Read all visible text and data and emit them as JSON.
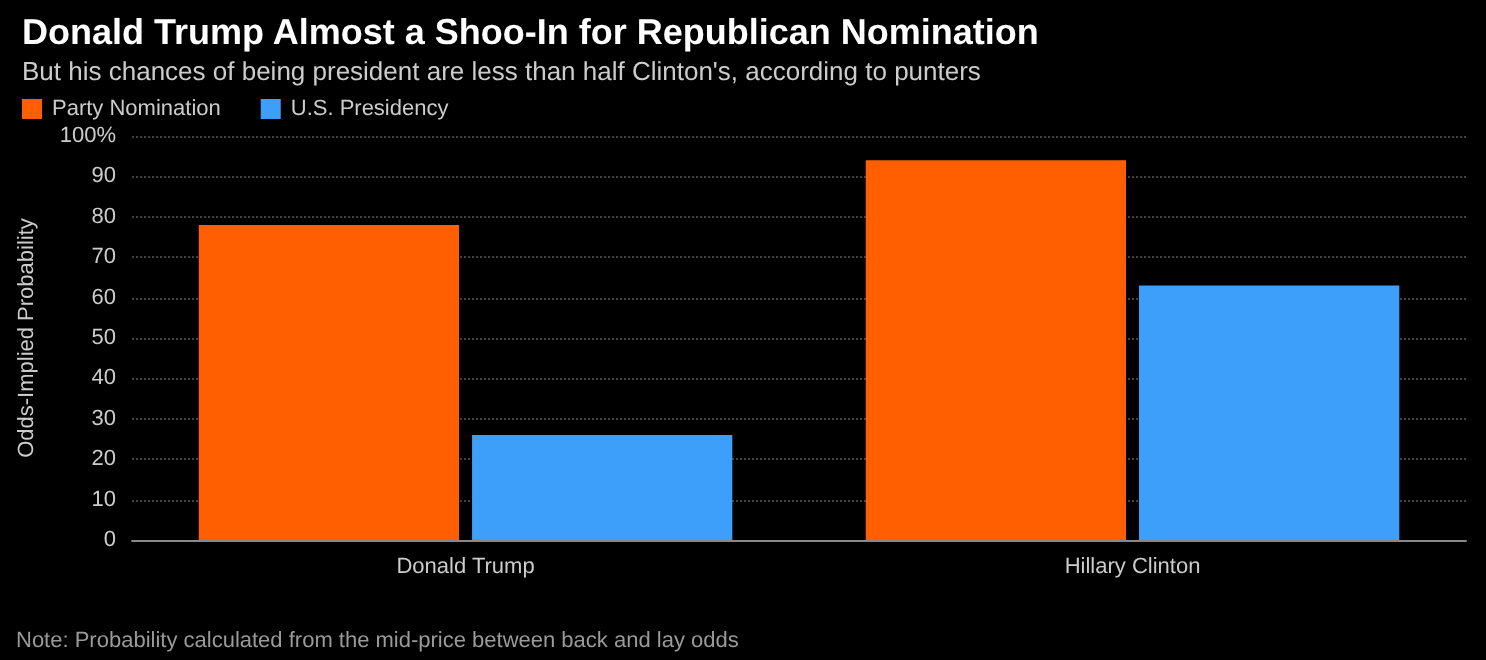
{
  "chart_data": {
    "type": "bar",
    "title": "Donald Trump Almost a Shoo-In for Republican Nomination",
    "subtitle": "But his chances of being president are less than half Clinton's, according to punters",
    "ylabel": "Odds-Implied Probability",
    "categories": [
      "Donald Trump",
      "Hillary Clinton"
    ],
    "series": [
      {
        "name": "Party Nomination",
        "color": "#ff5f00",
        "values": [
          78,
          94
        ]
      },
      {
        "name": "U.S. Presidency",
        "color": "#3d9ff9",
        "values": [
          26,
          63
        ]
      }
    ],
    "ylim": [
      0,
      100
    ],
    "yticks": [
      0,
      10,
      20,
      30,
      40,
      50,
      60,
      70,
      80,
      90,
      {
        "value": 100,
        "label": "100%"
      }
    ],
    "grid": "y",
    "legend": "top left",
    "annotations": [
      "Note: Probability calculated from the mid-price between back and lay odds"
    ]
  }
}
